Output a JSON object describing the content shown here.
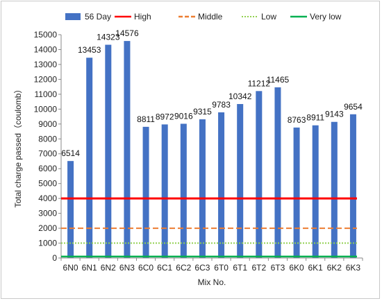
{
  "chart_data": {
    "type": "bar",
    "xlabel": "Mix No.",
    "ylabel": "Total charge passed（coulomb）",
    "ylim": [
      0,
      15000
    ],
    "yticks": [
      0,
      1000,
      2000,
      3000,
      4000,
      5000,
      6000,
      7000,
      8000,
      9000,
      10000,
      11000,
      12000,
      13000,
      14000,
      15000
    ],
    "grid": false,
    "legend_position": "top",
    "categories": [
      "6N0",
      "6N1",
      "6N2",
      "6N3",
      "6C0",
      "6C1",
      "6C2",
      "6C3",
      "6T0",
      "6T1",
      "6T2",
      "6T3",
      "6K0",
      "6K1",
      "6K2",
      "6K3"
    ],
    "series": [
      {
        "name": "56 Day",
        "color": "#4472C4",
        "values": [
          6514,
          13453,
          14323,
          14576,
          8811,
          8972,
          9016,
          9315,
          9783,
          10342,
          11212,
          11465,
          8763,
          8911,
          9143,
          9654
        ]
      }
    ],
    "reference_lines": [
      {
        "name": "High",
        "value": 4000,
        "color": "#FF0000",
        "style": "solid"
      },
      {
        "name": "Middle",
        "value": 2000,
        "color": "#ED7D31",
        "style": "dashed"
      },
      {
        "name": "Low",
        "value": 1000,
        "color": "#92D050",
        "style": "dotted"
      },
      {
        "name": "Very low",
        "value": 100,
        "color": "#00B050",
        "style": "solid"
      }
    ]
  }
}
